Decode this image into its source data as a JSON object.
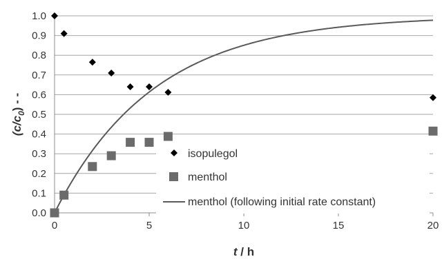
{
  "chart_data": {
    "type": "scatter",
    "xlabel_t": "t",
    "xlabel_unit": " / h",
    "ylabel_main": "(c/c",
    "ylabel_sub": "0",
    "ylabel_tail": ") - -",
    "xlim": [
      0,
      20
    ],
    "ylim": [
      0,
      1.0
    ],
    "grid": "horizontal",
    "x_ticks": [
      "0",
      "5",
      "10",
      "15",
      "20"
    ],
    "y_ticks": [
      "0.0",
      "0.1",
      "0.2",
      "0.3",
      "0.4",
      "0.5",
      "0.6",
      "0.7",
      "0.8",
      "0.9",
      "1.0"
    ],
    "legend_position": "bottom-center",
    "series": [
      {
        "name": "isopulegol",
        "marker": "diamond",
        "color": "#000000",
        "x": [
          0,
          0.5,
          2,
          3,
          4,
          5,
          6,
          20
        ],
        "y": [
          1.0,
          0.91,
          0.765,
          0.71,
          0.64,
          0.64,
          0.612,
          0.585
        ]
      },
      {
        "name": "menthol",
        "marker": "square",
        "color": "#6b6b6b",
        "x": [
          0,
          0.5,
          2,
          3,
          4,
          5,
          6,
          20
        ],
        "y": [
          0.0,
          0.09,
          0.235,
          0.29,
          0.358,
          0.358,
          0.388,
          0.415
        ]
      },
      {
        "name": "menthol (following initial rate constant)",
        "marker": "line",
        "color": "#595959",
        "rate_constant": 0.19
      }
    ]
  }
}
